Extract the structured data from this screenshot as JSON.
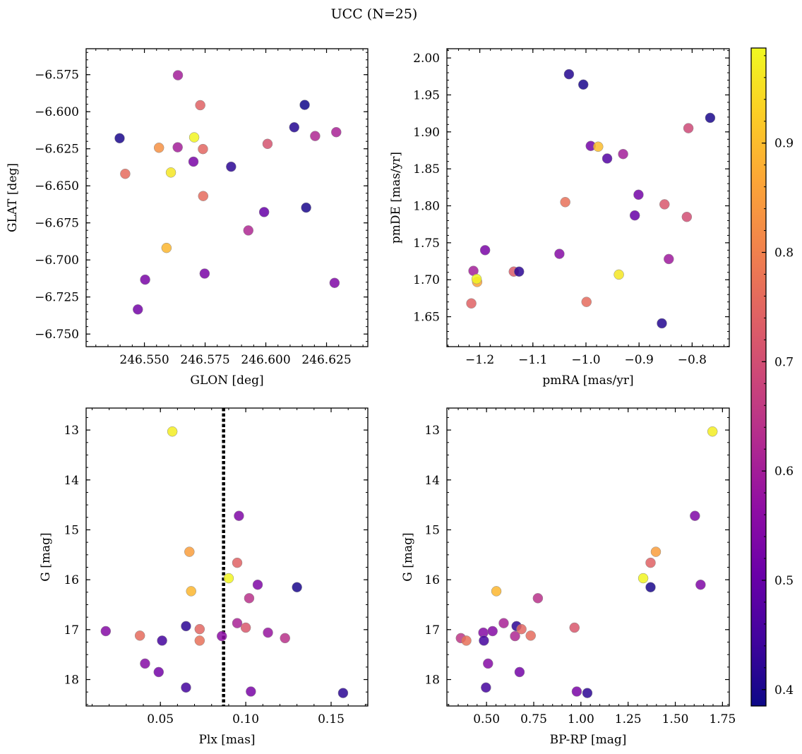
{
  "chart_data": [
    {
      "type": "scatter",
      "id": "glon_glat",
      "xlabel": "GLON [deg]",
      "ylabel": "GLAT [deg]",
      "xlim": [
        246.526,
        246.642
      ],
      "ylim": [
        -6.7585,
        -6.5575
      ],
      "xticks": [
        246.55,
        246.575,
        246.6,
        246.625
      ],
      "xtick_labels": [
        "246.550",
        "246.575",
        "246.600",
        "246.625"
      ],
      "xminor": 0.005,
      "yticks": [
        -6.75,
        -6.725,
        -6.7,
        -6.675,
        -6.65,
        -6.625,
        -6.6,
        -6.575
      ],
      "ytick_labels": [
        "−6.750",
        "−6.725",
        "−6.700",
        "−6.675",
        "−6.650",
        "−6.625",
        "−6.600",
        "−6.575"
      ],
      "yminor": 0.005,
      "points": [
        {
          "x": 246.5398,
          "y": -6.6179,
          "c": 0.4
        },
        {
          "x": 246.5421,
          "y": -6.6419,
          "c": 0.76
        },
        {
          "x": 246.5473,
          "y": -6.7334,
          "c": 0.52
        },
        {
          "x": 246.5503,
          "y": -6.7133,
          "c": 0.53
        },
        {
          "x": 246.556,
          "y": -6.6243,
          "c": 0.83
        },
        {
          "x": 246.5591,
          "y": -6.6919,
          "c": 0.89
        },
        {
          "x": 246.5609,
          "y": -6.641,
          "c": 0.96
        },
        {
          "x": 246.5637,
          "y": -6.624,
          "c": 0.6
        },
        {
          "x": 246.5638,
          "y": -6.5754,
          "c": 0.6
        },
        {
          "x": 246.5702,
          "y": -6.6337,
          "c": 0.53
        },
        {
          "x": 246.5705,
          "y": -6.6173,
          "c": 0.98
        },
        {
          "x": 246.573,
          "y": -6.5956,
          "c": 0.74
        },
        {
          "x": 246.5741,
          "y": -6.6252,
          "c": 0.75
        },
        {
          "x": 246.5742,
          "y": -6.6569,
          "c": 0.76
        },
        {
          "x": 246.5748,
          "y": -6.7092,
          "c": 0.53
        },
        {
          "x": 246.5857,
          "y": -6.6371,
          "c": 0.42
        },
        {
          "x": 246.5928,
          "y": -6.6801,
          "c": 0.62
        },
        {
          "x": 246.5993,
          "y": -6.6677,
          "c": 0.5
        },
        {
          "x": 246.6007,
          "y": -6.6217,
          "c": 0.71
        },
        {
          "x": 246.6117,
          "y": -6.6105,
          "c": 0.41
        },
        {
          "x": 246.616,
          "y": -6.5954,
          "c": 0.39
        },
        {
          "x": 246.6166,
          "y": -6.6647,
          "c": 0.4
        },
        {
          "x": 246.6203,
          "y": -6.6164,
          "c": 0.62
        },
        {
          "x": 246.6283,
          "y": -6.7155,
          "c": 0.54
        },
        {
          "x": 246.629,
          "y": -6.6138,
          "c": 0.61
        }
      ]
    },
    {
      "type": "scatter",
      "id": "pmra_pmde",
      "xlabel": "pmRA [mas/yr]",
      "ylabel": "pmDE [mas/yr]",
      "xlim": [
        -1.262,
        -0.73
      ],
      "ylim": [
        1.6095,
        2.0125
      ],
      "xticks": [
        -1.2,
        -1.1,
        -1.0,
        -0.9,
        -0.8
      ],
      "xtick_labels": [
        "−1.2",
        "−1.1",
        "−1.0",
        "−0.9",
        "−0.8"
      ],
      "xminor": 0.02,
      "yticks": [
        1.65,
        1.7,
        1.75,
        1.8,
        1.85,
        1.9,
        1.95,
        2.0
      ],
      "ytick_labels": [
        "1.65",
        "1.70",
        "1.75",
        "1.80",
        "1.85",
        "1.90",
        "1.95",
        "2.00"
      ],
      "yminor": 0.01,
      "points": [
        {
          "x": -1.216,
          "y": 1.668,
          "c": 0.74
        },
        {
          "x": -1.212,
          "y": 1.712,
          "c": 0.6
        },
        {
          "x": -1.205,
          "y": 1.697,
          "c": 0.86
        },
        {
          "x": -1.206,
          "y": 1.701,
          "c": 0.98
        },
        {
          "x": -1.19,
          "y": 1.74,
          "c": 0.53
        },
        {
          "x": -1.136,
          "y": 1.711,
          "c": 0.73
        },
        {
          "x": -1.126,
          "y": 1.711,
          "c": 0.42
        },
        {
          "x": -1.05,
          "y": 1.735,
          "c": 0.55
        },
        {
          "x": -1.039,
          "y": 1.805,
          "c": 0.77
        },
        {
          "x": -1.032,
          "y": 1.978,
          "c": 0.41
        },
        {
          "x": -1.005,
          "y": 1.964,
          "c": 0.4
        },
        {
          "x": -0.999,
          "y": 1.67,
          "c": 0.76
        },
        {
          "x": -0.991,
          "y": 1.881,
          "c": 0.52
        },
        {
          "x": -0.977,
          "y": 1.88,
          "c": 0.9
        },
        {
          "x": -0.96,
          "y": 1.864,
          "c": 0.47
        },
        {
          "x": -0.938,
          "y": 1.707,
          "c": 0.96
        },
        {
          "x": -0.93,
          "y": 1.87,
          "c": 0.6
        },
        {
          "x": -0.908,
          "y": 1.787,
          "c": 0.5
        },
        {
          "x": -0.901,
          "y": 1.815,
          "c": 0.52
        },
        {
          "x": -0.857,
          "y": 1.641,
          "c": 0.41
        },
        {
          "x": -0.852,
          "y": 1.802,
          "c": 0.72
        },
        {
          "x": -0.844,
          "y": 1.728,
          "c": 0.59
        },
        {
          "x": -0.81,
          "y": 1.785,
          "c": 0.7
        },
        {
          "x": -0.807,
          "y": 1.905,
          "c": 0.69
        },
        {
          "x": -0.766,
          "y": 1.919,
          "c": 0.4
        }
      ]
    },
    {
      "type": "scatter",
      "id": "plx_g",
      "xlabel": "Plx [mas]",
      "ylabel": "G [mag]",
      "xlim": [
        0.0065,
        0.1715
      ],
      "ylim": [
        18.53,
        12.56
      ],
      "y_inverted": true,
      "xticks": [
        0.05,
        0.1,
        0.15
      ],
      "xtick_labels": [
        "0.05",
        "0.10",
        "0.15"
      ],
      "xminor": 0.01,
      "yticks": [
        13,
        14,
        15,
        16,
        17,
        18
      ],
      "ytick_labels": [
        "13",
        "14",
        "15",
        "16",
        "17",
        "18"
      ],
      "yminor": 0.25,
      "vline": 0.087,
      "points": [
        {
          "x": 0.018,
          "y": 17.03,
          "c": 0.55
        },
        {
          "x": 0.038,
          "y": 17.12,
          "c": 0.76
        },
        {
          "x": 0.041,
          "y": 17.68,
          "c": 0.55
        },
        {
          "x": 0.049,
          "y": 17.85,
          "c": 0.52
        },
        {
          "x": 0.051,
          "y": 17.22,
          "c": 0.45
        },
        {
          "x": 0.057,
          "y": 13.03,
          "c": 0.97
        },
        {
          "x": 0.065,
          "y": 16.93,
          "c": 0.42
        },
        {
          "x": 0.065,
          "y": 18.16,
          "c": 0.45
        },
        {
          "x": 0.067,
          "y": 15.44,
          "c": 0.85
        },
        {
          "x": 0.068,
          "y": 16.23,
          "c": 0.89
        },
        {
          "x": 0.073,
          "y": 16.99,
          "c": 0.75
        },
        {
          "x": 0.073,
          "y": 17.22,
          "c": 0.77
        },
        {
          "x": 0.086,
          "y": 17.13,
          "c": 0.56
        },
        {
          "x": 0.09,
          "y": 15.97,
          "c": 0.98
        },
        {
          "x": 0.095,
          "y": 15.66,
          "c": 0.74
        },
        {
          "x": 0.095,
          "y": 16.87,
          "c": 0.61
        },
        {
          "x": 0.096,
          "y": 14.72,
          "c": 0.54
        },
        {
          "x": 0.1,
          "y": 16.96,
          "c": 0.72
        },
        {
          "x": 0.102,
          "y": 16.37,
          "c": 0.64
        },
        {
          "x": 0.103,
          "y": 18.24,
          "c": 0.53
        },
        {
          "x": 0.107,
          "y": 16.1,
          "c": 0.54
        },
        {
          "x": 0.113,
          "y": 17.06,
          "c": 0.58
        },
        {
          "x": 0.123,
          "y": 17.17,
          "c": 0.64
        },
        {
          "x": 0.13,
          "y": 16.15,
          "c": 0.4
        },
        {
          "x": 0.157,
          "y": 18.27,
          "c": 0.42
        }
      ]
    },
    {
      "type": "scatter",
      "id": "bprp_g",
      "xlabel": "BP-RP [mag]",
      "ylabel": "G [mag]",
      "xlim": [
        0.29,
        1.786
      ],
      "ylim": [
        18.53,
        12.56
      ],
      "y_inverted": true,
      "xticks": [
        0.5,
        0.75,
        1.0,
        1.25,
        1.5,
        1.75
      ],
      "xtick_labels": [
        "0.50",
        "0.75",
        "1.00",
        "1.25",
        "1.50",
        "1.75"
      ],
      "xminor": 0.05,
      "yticks": [
        13,
        14,
        15,
        16,
        17,
        18
      ],
      "ytick_labels": [
        "13",
        "14",
        "15",
        "16",
        "17",
        "18"
      ],
      "yminor": 0.25,
      "points": [
        {
          "x": 0.364,
          "y": 17.17,
          "c": 0.65
        },
        {
          "x": 0.393,
          "y": 17.22,
          "c": 0.77
        },
        {
          "x": 0.483,
          "y": 17.06,
          "c": 0.55
        },
        {
          "x": 0.486,
          "y": 17.22,
          "c": 0.45
        },
        {
          "x": 0.497,
          "y": 18.16,
          "c": 0.45
        },
        {
          "x": 0.508,
          "y": 17.68,
          "c": 0.55
        },
        {
          "x": 0.532,
          "y": 17.03,
          "c": 0.55
        },
        {
          "x": 0.552,
          "y": 16.23,
          "c": 0.89
        },
        {
          "x": 0.591,
          "y": 16.87,
          "c": 0.61
        },
        {
          "x": 0.651,
          "y": 17.13,
          "c": 0.62
        },
        {
          "x": 0.659,
          "y": 16.93,
          "c": 0.42
        },
        {
          "x": 0.675,
          "y": 17.85,
          "c": 0.52
        },
        {
          "x": 0.685,
          "y": 16.99,
          "c": 0.75
        },
        {
          "x": 0.734,
          "y": 17.12,
          "c": 0.76
        },
        {
          "x": 0.772,
          "y": 16.37,
          "c": 0.64
        },
        {
          "x": 0.966,
          "y": 16.96,
          "c": 0.72
        },
        {
          "x": 0.978,
          "y": 18.24,
          "c": 0.53
        },
        {
          "x": 1.034,
          "y": 18.27,
          "c": 0.42
        },
        {
          "x": 1.33,
          "y": 15.97,
          "c": 0.98
        },
        {
          "x": 1.369,
          "y": 16.15,
          "c": 0.4
        },
        {
          "x": 1.369,
          "y": 15.66,
          "c": 0.74
        },
        {
          "x": 1.397,
          "y": 15.44,
          "c": 0.85
        },
        {
          "x": 1.604,
          "y": 14.72,
          "c": 0.54
        },
        {
          "x": 1.634,
          "y": 16.1,
          "c": 0.54
        },
        {
          "x": 1.697,
          "y": 13.03,
          "c": 0.97
        }
      ]
    }
  ],
  "figure": {
    "suptitle": "UCC (N=25)"
  },
  "colorbar": {
    "colormap": "plasma",
    "vmin": 0.385,
    "vmax": 0.987,
    "ticks": [
      0.4,
      0.5,
      0.6,
      0.7,
      0.8,
      0.9
    ],
    "tick_labels": [
      "0.4",
      "0.5",
      "0.6",
      "0.7",
      "0.8",
      "0.9"
    ],
    "minor": 0.02
  },
  "style": {
    "vline_color": "#000000",
    "marker_alpha": 0.85
  }
}
